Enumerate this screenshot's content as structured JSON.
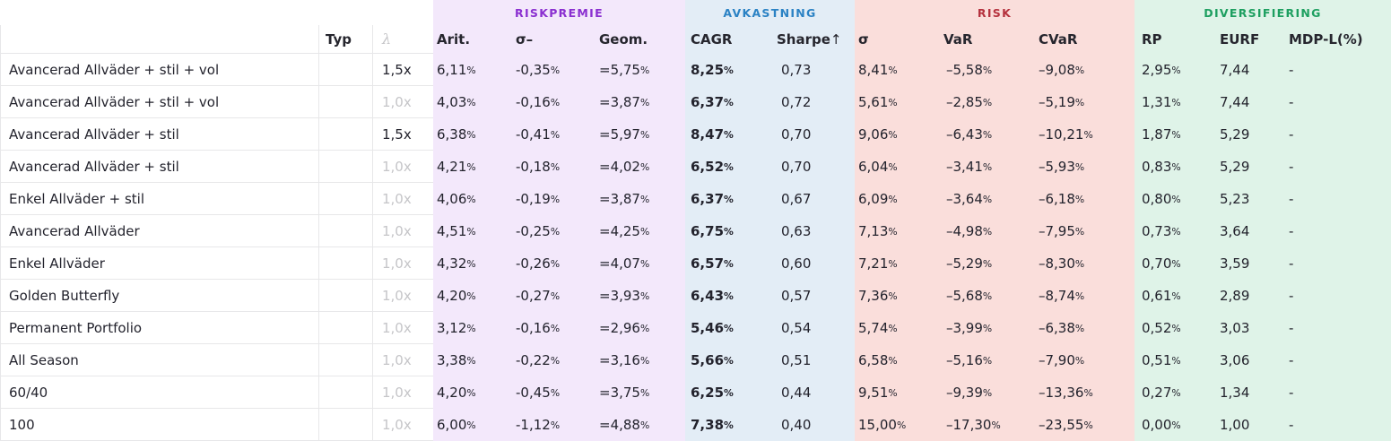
{
  "table": {
    "groups": [
      {
        "label": "RISKPREMIE",
        "text_color": "#8a2fd0",
        "bg_color": "#f3e8fb"
      },
      {
        "label": "AVKASTNING",
        "text_color": "#2b82c4",
        "bg_color": "#e3edf6"
      },
      {
        "label": "RISK",
        "text_color": "#b5323e",
        "bg_color": "#fadedb"
      },
      {
        "label": "DIVERSIFIERING",
        "text_color": "#1d9f60",
        "bg_color": "#dff3e8"
      }
    ],
    "columns": [
      "",
      "Typ",
      "λ",
      "Arit.",
      "σ–",
      "Geom.",
      "CAGR",
      "Sharpe↑",
      "σ",
      "VaR",
      "CVaR",
      "RP",
      "EURF",
      "MDP-L(%)"
    ],
    "lambda_muted_color": "#c5c5c8",
    "rows": [
      {
        "name": "Avancerad Allväder + stil + vol",
        "typ": "",
        "lambda": "1,5x",
        "lambda_strong": true,
        "arit": "6,11%",
        "sigma_minus": "-0,35%",
        "geom": "=5,75%",
        "cagr": "8,25%",
        "sharpe": "0,73",
        "sigma": "8,41%",
        "var": "–5,58%",
        "cvar": "–9,08%",
        "rp": "2,95%",
        "eurf": "7,44",
        "mdp": "-"
      },
      {
        "name": "Avancerad Allväder + stil + vol",
        "typ": "",
        "lambda": "1,0x",
        "lambda_strong": false,
        "arit": "4,03%",
        "sigma_minus": "-0,16%",
        "geom": "=3,87%",
        "cagr": "6,37%",
        "sharpe": "0,72",
        "sigma": "5,61%",
        "var": "–2,85%",
        "cvar": "–5,19%",
        "rp": "1,31%",
        "eurf": "7,44",
        "mdp": "-"
      },
      {
        "name": "Avancerad Allväder + stil",
        "typ": "",
        "lambda": "1,5x",
        "lambda_strong": true,
        "arit": "6,38%",
        "sigma_minus": "-0,41%",
        "geom": "=5,97%",
        "cagr": "8,47%",
        "sharpe": "0,70",
        "sigma": "9,06%",
        "var": "–6,43%",
        "cvar": "–10,21%",
        "rp": "1,87%",
        "eurf": "5,29",
        "mdp": "-"
      },
      {
        "name": "Avancerad Allväder + stil",
        "typ": "",
        "lambda": "1,0x",
        "lambda_strong": false,
        "arit": "4,21%",
        "sigma_minus": "-0,18%",
        "geom": "=4,02%",
        "cagr": "6,52%",
        "sharpe": "0,70",
        "sigma": "6,04%",
        "var": "–3,41%",
        "cvar": "–5,93%",
        "rp": "0,83%",
        "eurf": "5,29",
        "mdp": "-"
      },
      {
        "name": "Enkel Allväder + stil",
        "typ": "",
        "lambda": "1,0x",
        "lambda_strong": false,
        "arit": "4,06%",
        "sigma_minus": "-0,19%",
        "geom": "=3,87%",
        "cagr": "6,37%",
        "sharpe": "0,67",
        "sigma": "6,09%",
        "var": "–3,64%",
        "cvar": "–6,18%",
        "rp": "0,80%",
        "eurf": "5,23",
        "mdp": "-"
      },
      {
        "name": "Avancerad Allväder",
        "typ": "",
        "lambda": "1,0x",
        "lambda_strong": false,
        "arit": "4,51%",
        "sigma_minus": "-0,25%",
        "geom": "=4,25%",
        "cagr": "6,75%",
        "sharpe": "0,63",
        "sigma": "7,13%",
        "var": "–4,98%",
        "cvar": "–7,95%",
        "rp": "0,73%",
        "eurf": "3,64",
        "mdp": "-"
      },
      {
        "name": "Enkel Allväder",
        "typ": "",
        "lambda": "1,0x",
        "lambda_strong": false,
        "arit": "4,32%",
        "sigma_minus": "-0,26%",
        "geom": "=4,07%",
        "cagr": "6,57%",
        "sharpe": "0,60",
        "sigma": "7,21%",
        "var": "–5,29%",
        "cvar": "–8,30%",
        "rp": "0,70%",
        "eurf": "3,59",
        "mdp": "-"
      },
      {
        "name": "Golden Butterfly",
        "typ": "",
        "lambda": "1,0x",
        "lambda_strong": false,
        "arit": "4,20%",
        "sigma_minus": "-0,27%",
        "geom": "=3,93%",
        "cagr": "6,43%",
        "sharpe": "0,57",
        "sigma": "7,36%",
        "var": "–5,68%",
        "cvar": "–8,74%",
        "rp": "0,61%",
        "eurf": "2,89",
        "mdp": "-"
      },
      {
        "name": "Permanent Portfolio",
        "typ": "",
        "lambda": "1,0x",
        "lambda_strong": false,
        "arit": "3,12%",
        "sigma_minus": "-0,16%",
        "geom": "=2,96%",
        "cagr": "5,46%",
        "sharpe": "0,54",
        "sigma": "5,74%",
        "var": "–3,99%",
        "cvar": "–6,38%",
        "rp": "0,52%",
        "eurf": "3,03",
        "mdp": "-"
      },
      {
        "name": "All Season",
        "typ": "",
        "lambda": "1,0x",
        "lambda_strong": false,
        "arit": "3,38%",
        "sigma_minus": "-0,22%",
        "geom": "=3,16%",
        "cagr": "5,66%",
        "sharpe": "0,51",
        "sigma": "6,58%",
        "var": "–5,16%",
        "cvar": "–7,90%",
        "rp": "0,51%",
        "eurf": "3,06",
        "mdp": "-"
      },
      {
        "name": "60/40",
        "typ": "",
        "lambda": "1,0x",
        "lambda_strong": false,
        "arit": "4,20%",
        "sigma_minus": "-0,45%",
        "geom": "=3,75%",
        "cagr": "6,25%",
        "sharpe": "0,44",
        "sigma": "9,51%",
        "var": "–9,39%",
        "cvar": "–13,36%",
        "rp": "0,27%",
        "eurf": "1,34",
        "mdp": "-"
      },
      {
        "name": "100",
        "typ": "",
        "lambda": "1,0x",
        "lambda_strong": false,
        "arit": "6,00%",
        "sigma_minus": "-1,12%",
        "geom": "=4,88%",
        "cagr": "7,38%",
        "sharpe": "0,40",
        "sigma": "15,00%",
        "var": "–17,30%",
        "cvar": "–23,55%",
        "rp": "0,00%",
        "eurf": "1,00",
        "mdp": "-"
      }
    ]
  }
}
